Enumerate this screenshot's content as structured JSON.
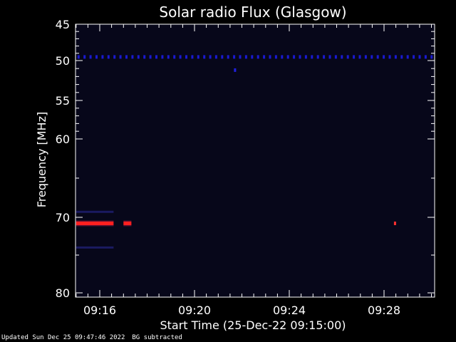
{
  "chart_data": {
    "type": "heatmap",
    "title": "Solar radio Flux (Glasgow)",
    "ylabel": "Frequency [MHz]",
    "xlabel": "Start Time (25-Dec-22 09:15:00)",
    "y_reversed": true,
    "ylim": [
      45,
      80
    ],
    "y_ticks": [
      45,
      50,
      55,
      60,
      70,
      80
    ],
    "y_scale": "nonlinear",
    "xlim": [
      "09:15:00",
      "09:30:00"
    ],
    "x_ticks": [
      "09:16",
      "09:20",
      "09:24",
      "09:28"
    ],
    "minor_x_ticks_per_major": 4,
    "background_color": "#07071a",
    "features": [
      {
        "name": "interference-band-50MHz",
        "freq_mhz": 49.5,
        "start": "09:15:00",
        "end": "09:30:00",
        "color": "#1a1ad0",
        "style": "dotted"
      },
      {
        "name": "spot-51MHz",
        "freq_mhz": 51.2,
        "start": "09:21:40",
        "end": "09:21:45",
        "color": "#2020e0",
        "style": "spot"
      },
      {
        "name": "burst-main",
        "freq_mhz": 70.8,
        "start": "09:15:00",
        "end": "09:16:35",
        "color": "#ff2020",
        "style": "band"
      },
      {
        "name": "burst-secondary",
        "freq_mhz": 70.8,
        "start": "09:17:00",
        "end": "09:17:20",
        "color": "#ff2020",
        "style": "band"
      },
      {
        "name": "burst-late",
        "freq_mhz": 70.8,
        "start": "09:28:25",
        "end": "09:28:30",
        "color": "#ff3030",
        "style": "spot"
      },
      {
        "name": "faint-band-69MHz",
        "freq_mhz": 69.3,
        "start": "09:15:00",
        "end": "09:16:35",
        "color": "#1a1a60",
        "style": "band"
      },
      {
        "name": "faint-band-74MHz",
        "freq_mhz": 74.0,
        "start": "09:15:00",
        "end": "09:16:35",
        "color": "#1a1a60",
        "style": "band"
      }
    ]
  },
  "footer": {
    "updated": "Updated Sun Dec 25 09:47:46 2022",
    "note": "BG subtracted"
  }
}
